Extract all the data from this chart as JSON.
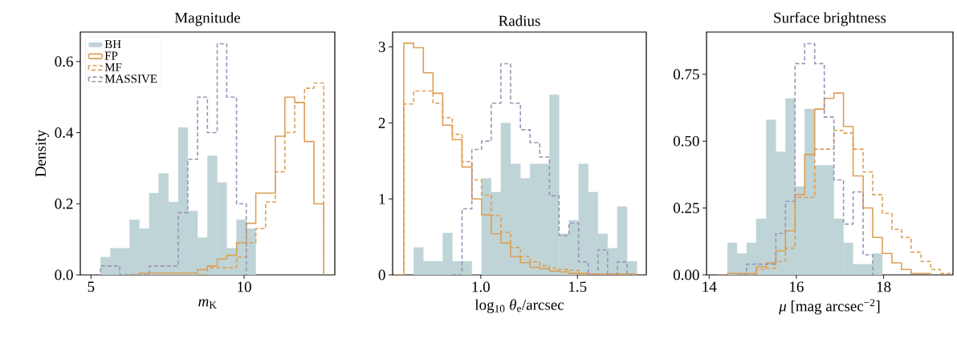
{
  "chart_data": [
    {
      "type": "histogram",
      "title": "Magnitude",
      "xlabel": "*m*$_{K}$",
      "ylabel": "Density",
      "xlim": [
        4.65,
        12.96
      ],
      "ylim": [
        0,
        0.683
      ],
      "xticks": [
        5,
        10
      ],
      "yticks": [
        {
          "value": 0,
          "label": "0.0"
        },
        {
          "value": 0.2,
          "label": "0.2"
        },
        {
          "value": 0.4,
          "label": "0.4"
        },
        {
          "value": 0.6,
          "label": "0.6"
        }
      ],
      "legend": "top left",
      "bins": [
        5.31,
        5.63,
        5.94,
        6.26,
        6.58,
        6.9,
        7.21,
        7.53,
        7.85,
        8.16,
        8.48,
        8.8,
        9.12,
        9.43,
        9.75,
        10.07,
        10.38
      ],
      "series": [
        {
          "name": "BH",
          "color": "#bfd4d6",
          "values": [
            0.05,
            0.075,
            0.075,
            0.155,
            0.13,
            0.23,
            0.285,
            0.205,
            0.415,
            0.18,
            0.105,
            0.335,
            0.26,
            0.075,
            0.155,
            0.13
          ]
        },
        {
          "name": "FP",
          "type": "step",
          "line_style": "solid",
          "color": "#dd9f55",
          "x": [
            6.26,
            6.58,
            6.9,
            7.21,
            7.53,
            7.85,
            8.16,
            8.48,
            8.8,
            9.12,
            9.43,
            9.75,
            10.07,
            10.38,
            10.7,
            11.02,
            11.33,
            11.65,
            11.97,
            12.28,
            12.6
          ],
          "values": [
            0,
            0.005,
            0.005,
            0.005,
            0.005,
            0.005,
            0.005,
            0.015,
            0.025,
            0.045,
            0.055,
            0.09,
            0.145,
            0.23,
            0.23,
            0.39,
            0.5,
            0.485,
            0.375,
            0.2,
            0
          ]
        },
        {
          "name": "MF",
          "type": "step",
          "line_style": "dashed",
          "color": "#dd9f55",
          "x": [
            8.48,
            8.8,
            9.12,
            9.43,
            9.75,
            10.07,
            10.38,
            10.7,
            11.02,
            11.33,
            11.65,
            11.97,
            12.28,
            12.6
          ],
          "values": [
            0,
            0.02,
            0.02,
            0.02,
            0.05,
            0.09,
            0.13,
            0.205,
            0.29,
            0.4,
            0.485,
            0.525,
            0.54,
            0
          ]
        },
        {
          "name": "MASSIVE",
          "type": "step",
          "line_style": "dashed",
          "color": "#9b94b8",
          "x": [
            4.99,
            5.31,
            5.63,
            5.94,
            6.26,
            6.58,
            6.9,
            7.21,
            7.53,
            7.85,
            8.16,
            8.48,
            8.8,
            9.12,
            9.43,
            9.75,
            10.07
          ],
          "values": [
            0,
            0.025,
            0.025,
            0,
            0,
            0,
            0.025,
            0.025,
            0.025,
            0.175,
            0.325,
            0.5,
            0.4,
            0.65,
            0.5,
            0.2,
            0
          ]
        }
      ]
    },
    {
      "type": "histogram",
      "title": "Radius",
      "xlabel": "log$_{10}$ *θ*$_{e}$/arcsec",
      "xlim": [
        0.544,
        1.856
      ],
      "ylim": [
        0,
        3.196
      ],
      "xticks": [
        {
          "value": 1,
          "label": "1.0"
        },
        {
          "value": 1.5,
          "label": "1.5"
        }
      ],
      "yticks": [
        0,
        1,
        2,
        3
      ],
      "bins": [
        0.653,
        0.703,
        0.753,
        0.803,
        0.853,
        0.903,
        0.954,
        1.004,
        1.054,
        1.104,
        1.154,
        1.205,
        1.255,
        1.305,
        1.355,
        1.405,
        1.456,
        1.506,
        1.556,
        1.606,
        1.656,
        1.706,
        1.757,
        1.807
      ],
      "series": [
        {
          "color": "#bfd4d6",
          "values": [
            0.36,
            0.18,
            0.18,
            0.55,
            0.18,
            0.18,
            0,
            1.27,
            1.09,
            2.0,
            1.46,
            1.27,
            1.46,
            1.46,
            2.37,
            0.54,
            0.72,
            1.46,
            1.09,
            0.54,
            0.35,
            0.9,
            0.18
          ]
        },
        {
          "type": "step",
          "line_style": "solid",
          "color": "#dd9f55",
          "x": [
            0.552,
            0.602,
            0.653,
            0.703,
            0.753,
            0.803,
            0.853,
            0.903,
            0.954,
            1.004,
            1.054,
            1.104,
            1.154,
            1.205,
            1.255,
            1.305,
            1.355,
            1.405,
            1.456,
            1.506,
            1.556,
            1.606,
            1.656,
            1.706,
            1.757,
            1.807
          ],
          "values": [
            0,
            3.05,
            2.99,
            2.66,
            2.39,
            1.97,
            1.78,
            1.42,
            1.0,
            0.79,
            0.54,
            0.42,
            0.24,
            0.16,
            0.1,
            0.08,
            0.05,
            0.04,
            0.02,
            0.02,
            0.01,
            0.01,
            0.01,
            0.01,
            0.01,
            0
          ]
        },
        {
          "type": "step",
          "line_style": "dashed",
          "color": "#dd9f55",
          "x": [
            0.552,
            0.602,
            0.653,
            0.703,
            0.753,
            0.803,
            0.853,
            0.903,
            0.954,
            1.004,
            1.054,
            1.104,
            1.154,
            1.205,
            1.255,
            1.305,
            1.355,
            1.405,
            1.456,
            1.506,
            1.556,
            1.606,
            1.656,
            1.706,
            1.757,
            1.807
          ],
          "values": [
            0,
            2.25,
            2.42,
            2.42,
            2.26,
            2.07,
            1.85,
            1.49,
            1.25,
            1.05,
            0.78,
            0.56,
            0.36,
            0.24,
            0.17,
            0.12,
            0.09,
            0.07,
            0.06,
            0.01,
            0.01,
            0.01,
            0.01,
            0.01,
            0.01,
            0
          ]
        },
        {
          "type": "step",
          "line_style": "dashed",
          "color": "#9b94b8",
          "x": [
            0.853,
            0.903,
            0.954,
            1.004,
            1.054,
            1.104,
            1.154,
            1.205,
            1.255,
            1.305,
            1.355,
            1.405,
            1.456,
            1.506,
            1.556,
            1.606,
            1.656,
            1.706,
            1.757,
            1.807
          ],
          "values": [
            0,
            0.87,
            1.65,
            1.76,
            2.26,
            2.78,
            2.26,
            1.91,
            1.74,
            1.55,
            1.04,
            0.52,
            0.68,
            0.17,
            0,
            0.33,
            0,
            0.17,
            0,
            0
          ]
        }
      ]
    },
    {
      "type": "histogram",
      "title": "Surface brightness",
      "xlabel": "*μ* [mag arcsec$^{−2}$]",
      "xlim": [
        13.94,
        19.59
      ],
      "ylim": [
        0,
        0.908
      ],
      "xticks": [
        14,
        16,
        18
      ],
      "yticks": [
        {
          "value": 0,
          "label": "0.00"
        },
        {
          "value": 0.25,
          "label": "0.25"
        },
        {
          "value": 0.5,
          "label": "0.50"
        },
        {
          "value": 0.75,
          "label": "0.75"
        }
      ],
      "bins": [
        14.42,
        14.64,
        14.86,
        15.08,
        15.31,
        15.53,
        15.75,
        15.97,
        16.19,
        16.42,
        16.64,
        16.86,
        17.08,
        17.3,
        17.53,
        17.75,
        17.97
      ],
      "series": [
        {
          "color": "#bfd4d6",
          "values": [
            0.12,
            0.08,
            0.12,
            0.21,
            0.58,
            0.46,
            0.66,
            0.33,
            0.62,
            0.41,
            0.41,
            0.21,
            0.12,
            0.04,
            0.04,
            0.08
          ]
        },
        {
          "type": "step",
          "line_style": "solid",
          "color": "#dd9f55",
          "x": [
            14.2,
            14.42,
            14.64,
            14.86,
            15.08,
            15.31,
            15.53,
            15.75,
            15.97,
            16.19,
            16.42,
            16.64,
            16.86,
            17.08,
            17.3,
            17.53,
            17.75,
            17.97,
            18.19,
            18.41,
            18.63,
            18.86,
            19.08
          ],
          "values": [
            0,
            0.005,
            0.005,
            0.005,
            0.03,
            0.045,
            0.09,
            0.165,
            0.3,
            0.45,
            0.62,
            0.66,
            0.68,
            0.555,
            0.37,
            0.25,
            0.14,
            0.08,
            0.045,
            0.02,
            0.005,
            0.005,
            0
          ]
        },
        {
          "type": "step",
          "line_style": "dashed",
          "color": "#dd9f55",
          "x": [
            14.86,
            15.08,
            15.31,
            15.53,
            15.75,
            15.97,
            16.19,
            16.42,
            16.64,
            16.86,
            17.08,
            17.3,
            17.53,
            17.75,
            17.97,
            18.19,
            18.41,
            18.63,
            18.86,
            19.08,
            19.3,
            19.52
          ],
          "values": [
            0,
            0.02,
            0.025,
            0.05,
            0.1,
            0.29,
            0.29,
            0.47,
            0.47,
            0.54,
            0.53,
            0.47,
            0.385,
            0.3,
            0.23,
            0.17,
            0.14,
            0.085,
            0.05,
            0.02,
            0.005,
            0
          ]
        },
        {
          "type": "step",
          "line_style": "dashed",
          "color": "#9b94b8",
          "x": [
            14.64,
            14.86,
            15.08,
            15.31,
            15.53,
            15.75,
            15.97,
            16.19,
            16.42,
            16.64,
            16.86,
            17.08,
            17.3,
            17.53,
            17.75
          ],
          "values": [
            0,
            0.04,
            0.04,
            0.04,
            0.155,
            0.275,
            0.79,
            0.865,
            0.79,
            0.59,
            0.355,
            0.19,
            0.31,
            0.075,
            0
          ]
        }
      ]
    }
  ]
}
